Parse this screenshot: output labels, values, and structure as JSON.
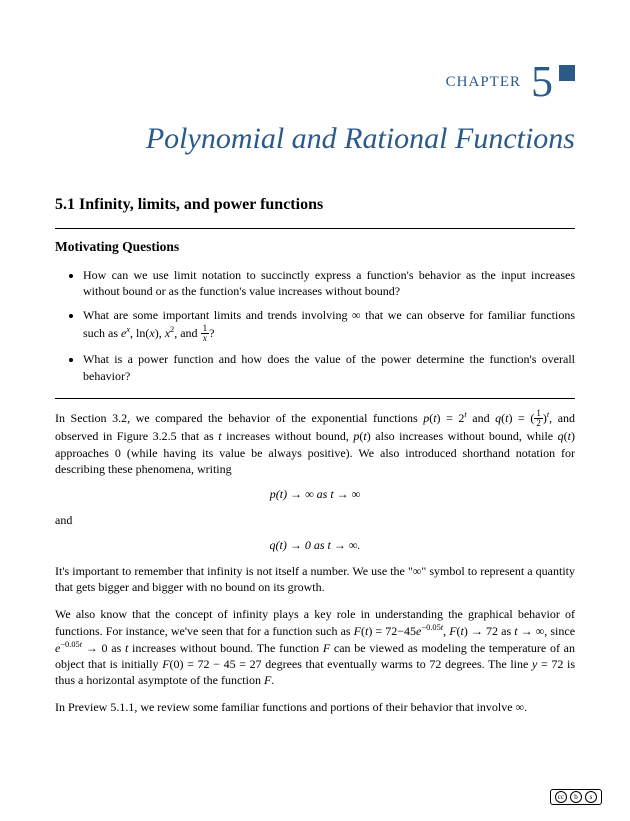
{
  "chapter": {
    "label": "CHAPTER",
    "number": "5",
    "title": "Polynomial and Rational Functions"
  },
  "section": {
    "number": "5.1",
    "title": "Infinity, limits, and power functions"
  },
  "motivating_heading": "Motivating Questions",
  "questions": [
    "How can we use limit notation to succinctly express a function's behavior as the input increases without bound or as the function's value increases without bound?",
    "What are some important limits and trends involving ∞ that we can observe for familiar functions such as eˣ, ln(x), x², and 1/x?",
    "What is a power function and how does the value of the power determine the function's overall behavior?"
  ],
  "para1_a": "In Section 3.2, we compared the behavior of the exponential functions ",
  "para1_b": " and ",
  "para1_c": ", and observed in Figure 3.2.5 that as ",
  "para1_d": " increases without bound, ",
  "para1_e": " also increases without bound, while ",
  "para1_f": " approaches 0 (while having its value be always positive). We also introduced shorthand notation for describing these phenomena, writing",
  "eqn1": "p(t) → ∞ as t → ∞",
  "and_word": "and",
  "eqn2": "q(t) → 0 as t → ∞.",
  "para2": "It's important to remember that infinity is not itself a number. We use the \"∞\" symbol to represent a quantity that gets bigger and bigger with no bound on its growth.",
  "para3_a": "We also know that the concept of infinity plays a key role in understanding the graphical behavior of functions. For instance, we've seen that for a function such as ",
  "para3_b": ", ",
  "para3_c": " as ",
  "para3_d": ", since ",
  "para3_e": " as ",
  "para3_f": " increases without bound. The function ",
  "para3_g": " can be viewed as modeling the temperature of an object that is initially ",
  "para3_h": " degrees that eventually warms to 72 degrees. The line ",
  "para3_i": " is thus a horizontal asymptote of the function ",
  "para3_j": ".",
  "para4_a": "In Preview 5.1.1, we review some familiar functions and portions of their behavior that involve ",
  "para4_b": ".",
  "cc": {
    "c1": "cc",
    "c2": "b",
    "c3": "s"
  },
  "colors": {
    "accent": "#2a5a8a",
    "text": "#000000",
    "bg": "#ffffff"
  },
  "typography": {
    "body_fontsize_pt": 12,
    "title_fontsize_pt": 30,
    "chapter_num_fontsize_pt": 44,
    "font_family": "Palatino"
  }
}
